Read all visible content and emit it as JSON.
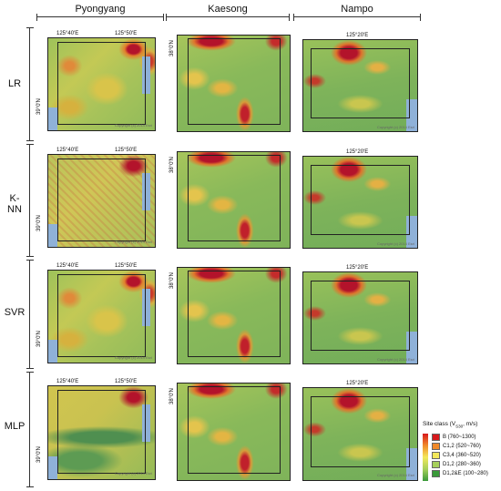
{
  "columns": [
    "Pyongyang",
    "Kaesong",
    "Nampo"
  ],
  "rows": [
    "LR",
    "K-NN",
    "SVR",
    "MLP"
  ],
  "coords": {
    "pyongyang_lon": [
      "125°40′E",
      "125°50′E"
    ],
    "pyongyang_lat": "39°0′N",
    "kaesong_lat": "38°0′N",
    "nampo_lon": "125°20′E"
  },
  "copyright": "Copyright (c) 2014 Esri",
  "legend": {
    "title": "Site class (V",
    "title_sub": "S30",
    "title_unit": ", m/s)",
    "items": [
      {
        "label": "B (760~1300)",
        "color": "#d7191c"
      },
      {
        "label": "C1,2 (520~760)",
        "color": "#f08a2a"
      },
      {
        "label": "C3,4 (360~520)",
        "color": "#f3e85a"
      },
      {
        "label": "D1,2 (280~360)",
        "color": "#a6d05a"
      },
      {
        "label": "D1,2&E (100~280)",
        "color": "#3a9a3a"
      }
    ]
  }
}
